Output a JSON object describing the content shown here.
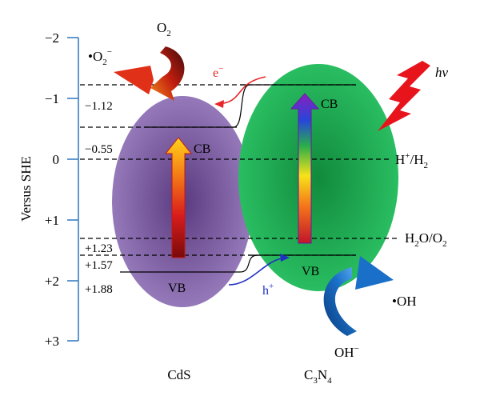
{
  "axis": {
    "label": "Versus SHE",
    "ticks": [
      "−2",
      "−1",
      "0",
      "+1",
      "+2",
      "+3"
    ]
  },
  "levels": {
    "cds_cb": "−0.55",
    "c3n4_cb": "−1.12",
    "h2o_o2": "+1.23",
    "c3n4_vb": "+1.57",
    "cds_vb": "+1.88"
  },
  "labels": {
    "o2": "O",
    "o2_sub": "2",
    "superoxide": "•O",
    "superoxide_sub": "2",
    "superoxide_sup": "−",
    "electron": "e",
    "electron_sup": "−",
    "hole": "h",
    "hole_sup": "+",
    "hv": "hν",
    "h_ion": "H",
    "h_ion_sup": "+",
    "h2": "/H",
    "h2_sub": "2",
    "h2o": "H",
    "h2o_sub": "2",
    "h2o_rest": "O/O",
    "h2o_sub2": "2",
    "oh_radical": "•OH",
    "hydroxide": "OH",
    "hydroxide_sup": "−",
    "cds_cb_label": "CB",
    "cds_vb_label": "VB",
    "c3n4_cb_label": "CB",
    "c3n4_vb_label": "VB",
    "cds_name": "CdS",
    "c3n4_c": "C",
    "c3n4_3": "3",
    "c3n4_n": "N",
    "c3n4_4": "4"
  },
  "colors": {
    "axis": "#3a7fc4",
    "cds": "#7b5aa0",
    "c3n4": "#1fae55",
    "electron_arrow": "#e8262a",
    "hole_arrow": "#2030c0",
    "lightning": "#e8141c",
    "oh_arrow": "#1a6fc0"
  }
}
